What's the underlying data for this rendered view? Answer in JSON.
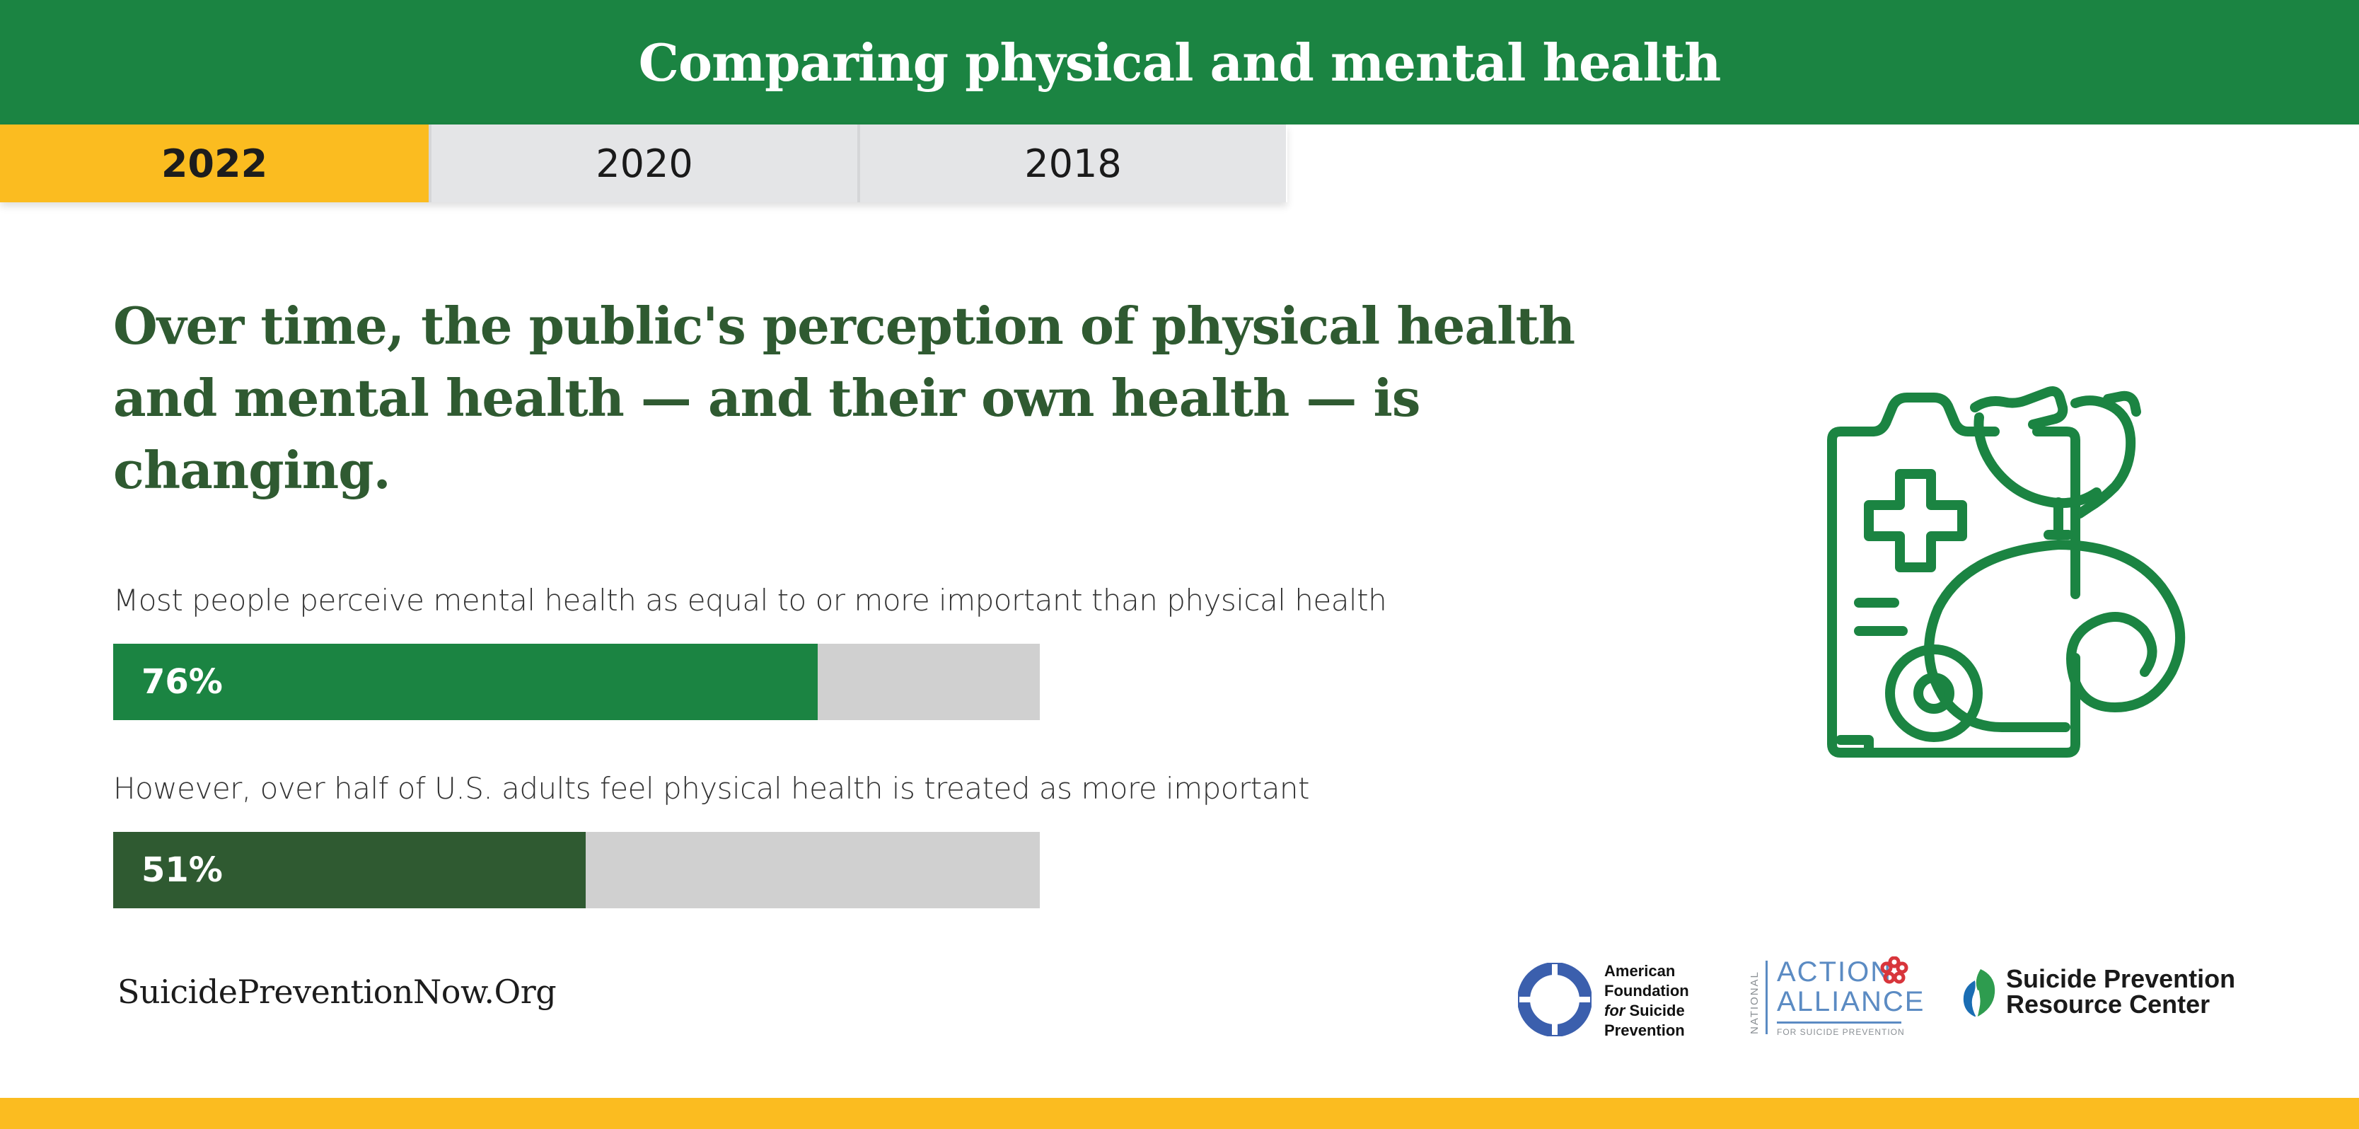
{
  "header": {
    "title": "Comparing physical and mental health"
  },
  "tabs": [
    {
      "label": "2022",
      "active": true
    },
    {
      "label": "2020",
      "active": false
    },
    {
      "label": "2018",
      "active": false
    }
  ],
  "headline": "Over time, the public's perception of physical health and mental health — and their own health — is changing.",
  "stats": [
    {
      "label": "Most people perceive mental health as equal to or more important than physical health",
      "value_text": "76%",
      "value": 76,
      "color": "#1b8442"
    },
    {
      "label": "However, over half of U.S. adults feel physical health is treated as more important",
      "value_text": "51%",
      "value": 51,
      "color": "#2f5a31"
    }
  ],
  "illustration": {
    "icon": "medical-clipboard-stethoscope-icon",
    "color": "#1b8442"
  },
  "footer": {
    "url": "SuicidePreventionNow.Org",
    "logos": {
      "afsp": {
        "line1": "American",
        "line2": "Foundation",
        "line3_italic": "for",
        "line3": "Suicide",
        "line4": "Prevention",
        "color": "#3b5fad"
      },
      "naa": {
        "side": "NATIONAL",
        "line1": "ACTION",
        "line2": "ALLIANCE",
        "sub": "FOR SUICIDE PREVENTION",
        "color": "#5b8bc3",
        "accent": "#d8353b"
      },
      "sprc": {
        "line1": "Suicide Prevention",
        "line2": "Resource Center",
        "color": "#1a6db3"
      }
    }
  },
  "colors": {
    "header_green": "#1b8442",
    "headline_green": "#2f5a31",
    "accent_yellow": "#fbbc20",
    "track_gray": "#d0d0d0"
  }
}
